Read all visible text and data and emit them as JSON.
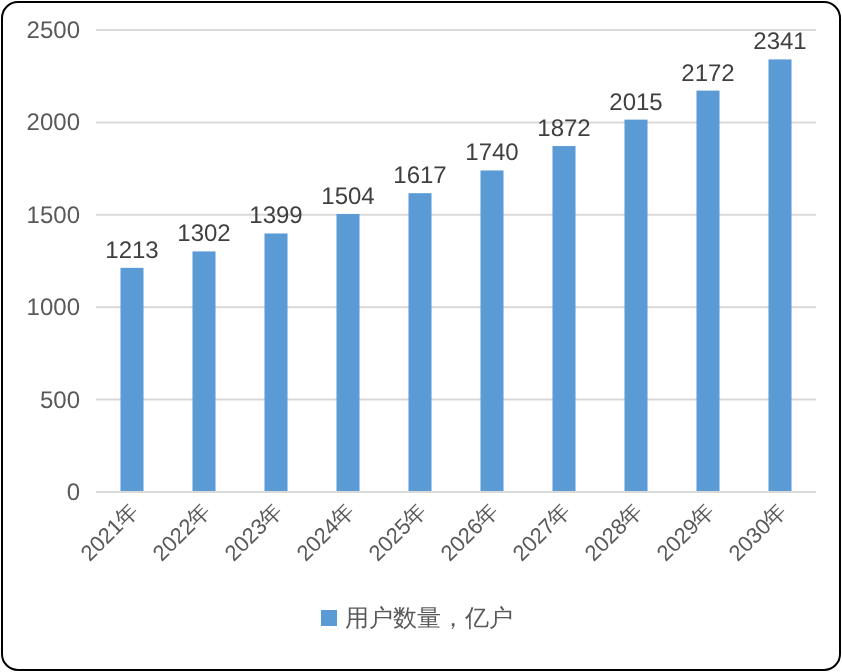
{
  "chart_data": {
    "type": "bar",
    "categories": [
      "2021年",
      "2022年",
      "2023年",
      "2024年",
      "2025年",
      "2026年",
      "2027年",
      "2028年",
      "2029年",
      "2030年"
    ],
    "series": [
      {
        "name": "用户数量，亿户",
        "color": "#5b9bd5",
        "values": [
          1213,
          1302,
          1399,
          1504,
          1617,
          1740,
          1872,
          2015,
          2172,
          2341
        ]
      }
    ],
    "ylim": [
      0,
      2500
    ],
    "yticks": [
      0,
      500,
      1000,
      1500,
      2000,
      2500
    ],
    "grid": "y",
    "legend": "bottom",
    "data_labels": true
  }
}
